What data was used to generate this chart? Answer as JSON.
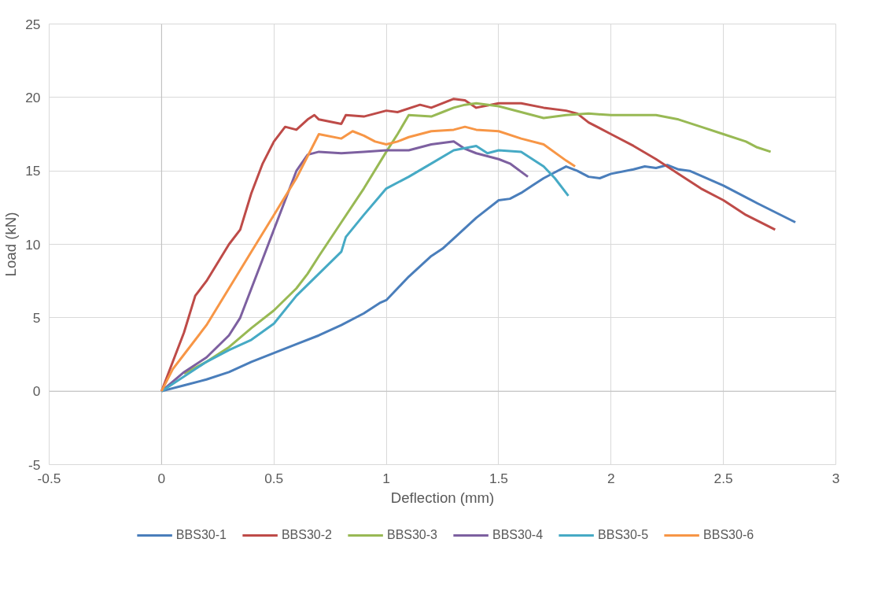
{
  "chart_data": {
    "type": "line",
    "xlabel": "Deflection (mm)",
    "ylabel": "Load (kN)",
    "xlim": [
      -0.5,
      3
    ],
    "xticks": [
      -0.5,
      0,
      0.5,
      1,
      1.5,
      2,
      2.5,
      3
    ],
    "ylim": [
      -5,
      25
    ],
    "yticks": [
      -5,
      0,
      5,
      10,
      15,
      20,
      25
    ],
    "grid": true,
    "legend": "bottom",
    "marker": "none",
    "line_style": "solid",
    "series": [
      {
        "name": "BBS30-1",
        "color": "#4a7ebb",
        "x": [
          0,
          0.1,
          0.2,
          0.3,
          0.4,
          0.5,
          0.6,
          0.7,
          0.8,
          0.9,
          0.97,
          1.0,
          1.05,
          1.1,
          1.2,
          1.25,
          1.3,
          1.4,
          1.5,
          1.55,
          1.6,
          1.65,
          1.7,
          1.75,
          1.8,
          1.85,
          1.9,
          1.95,
          2.0,
          2.1,
          2.15,
          2.2,
          2.25,
          2.3,
          2.35,
          2.5,
          2.65,
          2.82
        ],
        "values": [
          0,
          0.4,
          0.8,
          1.3,
          2,
          2.6,
          3.2,
          3.8,
          4.5,
          5.3,
          6,
          6.2,
          7,
          7.8,
          9.2,
          9.7,
          10.4,
          11.8,
          13,
          13.1,
          13.5,
          14,
          14.5,
          14.9,
          15.3,
          15,
          14.6,
          14.5,
          14.8,
          15.1,
          15.3,
          15.2,
          15.4,
          15.1,
          15,
          14,
          12.8,
          11.5
        ]
      },
      {
        "name": "BBS30-2",
        "color": "#be4b48",
        "x": [
          0,
          0.05,
          0.1,
          0.15,
          0.2,
          0.3,
          0.35,
          0.4,
          0.45,
          0.5,
          0.55,
          0.6,
          0.65,
          0.68,
          0.7,
          0.8,
          0.82,
          0.9,
          1.0,
          1.05,
          1.15,
          1.2,
          1.3,
          1.35,
          1.4,
          1.5,
          1.6,
          1.7,
          1.8,
          1.85,
          1.9,
          2.0,
          2.1,
          2.2,
          2.3,
          2.4,
          2.5,
          2.6,
          2.73
        ],
        "values": [
          0,
          2,
          4,
          6.5,
          7.5,
          10,
          11,
          13.5,
          15.5,
          17,
          18,
          17.8,
          18.5,
          18.8,
          18.5,
          18.2,
          18.8,
          18.7,
          19.1,
          19,
          19.5,
          19.3,
          19.9,
          19.8,
          19.3,
          19.6,
          19.6,
          19.3,
          19.1,
          18.9,
          18.3,
          17.5,
          16.7,
          15.8,
          14.8,
          13.8,
          13,
          12,
          11
        ]
      },
      {
        "name": "BBS30-3",
        "color": "#98b954",
        "x": [
          0.1,
          0.2,
          0.3,
          0.4,
          0.5,
          0.6,
          0.65,
          0.7,
          0.8,
          0.9,
          1.0,
          1.05,
          1.1,
          1.2,
          1.25,
          1.3,
          1.35,
          1.4,
          1.5,
          1.6,
          1.7,
          1.8,
          1.9,
          2.0,
          2.1,
          2.2,
          2.3,
          2.4,
          2.5,
          2.6,
          2.65,
          2.71
        ],
        "values": [
          1.2,
          2,
          3,
          4.3,
          5.5,
          7,
          8,
          9.2,
          11.5,
          13.8,
          16.3,
          17.5,
          18.8,
          18.7,
          19,
          19.3,
          19.5,
          19.6,
          19.4,
          19,
          18.6,
          18.8,
          18.9,
          18.8,
          18.8,
          18.8,
          18.5,
          18,
          17.5,
          17,
          16.6,
          16.3
        ]
      },
      {
        "name": "BBS30-4",
        "color": "#7d60a0",
        "x": [
          0,
          0.1,
          0.2,
          0.3,
          0.35,
          0.4,
          0.45,
          0.5,
          0.55,
          0.6,
          0.65,
          0.7,
          0.8,
          0.9,
          1.0,
          1.1,
          1.2,
          1.3,
          1.35,
          1.4,
          1.5,
          1.55,
          1.63
        ],
        "values": [
          0,
          1.3,
          2.3,
          3.8,
          5,
          7,
          9,
          11,
          13,
          15,
          16.1,
          16.3,
          16.2,
          16.3,
          16.4,
          16.4,
          16.8,
          17,
          16.5,
          16.2,
          15.8,
          15.5,
          14.6
        ]
      },
      {
        "name": "BBS30-5",
        "color": "#46aac5",
        "x": [
          0,
          0.1,
          0.2,
          0.3,
          0.4,
          0.5,
          0.6,
          0.7,
          0.8,
          0.82,
          0.9,
          1.0,
          1.1,
          1.2,
          1.3,
          1.4,
          1.45,
          1.5,
          1.6,
          1.7,
          1.75,
          1.81
        ],
        "values": [
          0,
          1,
          2,
          2.8,
          3.5,
          4.6,
          6.5,
          8,
          9.5,
          10.5,
          12,
          13.8,
          14.6,
          15.5,
          16.4,
          16.7,
          16.2,
          16.4,
          16.3,
          15.3,
          14.5,
          13.3
        ]
      },
      {
        "name": "BBS30-6",
        "color": "#f79646",
        "x": [
          0,
          0.05,
          0.1,
          0.2,
          0.3,
          0.4,
          0.5,
          0.6,
          0.65,
          0.7,
          0.8,
          0.85,
          0.9,
          0.95,
          1.0,
          1.05,
          1.1,
          1.2,
          1.3,
          1.35,
          1.4,
          1.5,
          1.6,
          1.7,
          1.8,
          1.84
        ],
        "values": [
          0,
          1.5,
          2.5,
          4.5,
          7,
          9.5,
          12,
          14.5,
          16,
          17.5,
          17.2,
          17.7,
          17.4,
          17,
          16.8,
          17,
          17.3,
          17.7,
          17.8,
          18,
          17.8,
          17.7,
          17.2,
          16.8,
          15.7,
          15.3
        ]
      }
    ]
  }
}
